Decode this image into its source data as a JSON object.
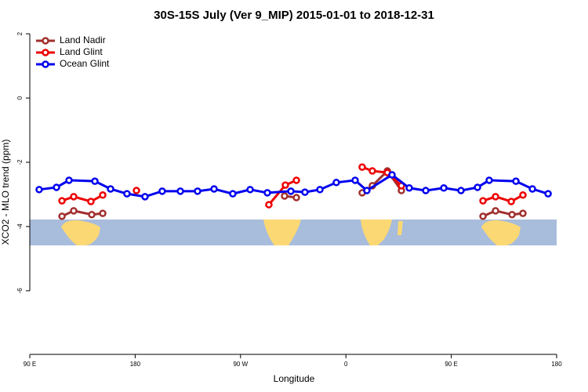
{
  "chart_data": {
    "type": "line",
    "title": "30S-15S July (Ver 9_MIP)   2015-01-01 to 2018-12-31",
    "x_label": "Longitude",
    "y_label": "XCO2 - MLO trend (ppm)",
    "xlim": [
      90,
      540
    ],
    "ylim": [
      -7.98,
      2.32
    ],
    "xticks": [
      {
        "value": 90,
        "label": "90 E"
      },
      {
        "value": 180,
        "label": "180"
      },
      {
        "value": 270,
        "label": "90 W"
      },
      {
        "value": 360,
        "label": "0"
      },
      {
        "value": 450,
        "label": "90 E"
      },
      {
        "value": 540,
        "label": "180"
      }
    ],
    "yticks": [
      -6,
      -4,
      -2,
      0,
      2
    ],
    "legend": "topleft",
    "series": [
      {
        "name": "Land Nadir",
        "color": "#a0302e",
        "x": [
          117.5,
          127.5,
          142.9,
          152.3,
          null,
          307.6,
          317.7,
          null,
          373.9,
          382.6,
          395.4,
          407.4,
          null,
          477.1,
          487.8,
          501.9,
          511.2
        ],
        "values": [
          -3.68,
          -3.51,
          -3.63,
          -3.59,
          null,
          -3.05,
          -3.1,
          null,
          -2.95,
          -2.73,
          -2.27,
          -2.88,
          null,
          -3.68,
          -3.51,
          -3.63,
          -3.59
        ]
      },
      {
        "name": "Land Glint",
        "color": "#ee0000",
        "x": [
          117.5,
          127.5,
          142.2,
          152.3,
          null,
          181.1,
          null,
          294.2,
          308.3,
          317.7,
          null,
          373.9,
          382.6,
          395.4,
          407.4,
          null,
          477.1,
          487.8,
          501.2,
          511.2
        ],
        "values": [
          -3.2,
          -3.07,
          -3.22,
          -3.02,
          null,
          -2.88,
          null,
          -3.32,
          -2.71,
          -2.56,
          null,
          -2.15,
          -2.27,
          -2.32,
          -2.73,
          null,
          -3.2,
          -3.07,
          -3.22,
          -3.02
        ]
      },
      {
        "name": "Ocean Glint",
        "color": "#0000ee",
        "x": [
          98,
          112.8,
          123.5,
          145.6,
          159,
          173,
          188.4,
          203.1,
          218.6,
          233.3,
          247.4,
          263.4,
          278.2,
          292.9,
          313,
          325,
          337.8,
          351.8,
          367.9,
          377.9,
          399.4,
          414.1,
          428.2,
          443.6,
          458.3,
          472.4,
          482.4,
          505.2,
          519.3,
          532.7
        ],
        "values": [
          -2.85,
          -2.78,
          -2.56,
          -2.59,
          -2.83,
          -2.98,
          -3.07,
          -2.9,
          -2.9,
          -2.9,
          -2.83,
          -2.98,
          -2.85,
          -2.95,
          -2.9,
          -2.93,
          -2.85,
          -2.63,
          -2.56,
          -2.88,
          -2.39,
          -2.8,
          -2.88,
          -2.8,
          -2.88,
          -2.78,
          -2.56,
          -2.59,
          -2.83,
          -2.98
        ]
      }
    ]
  }
}
